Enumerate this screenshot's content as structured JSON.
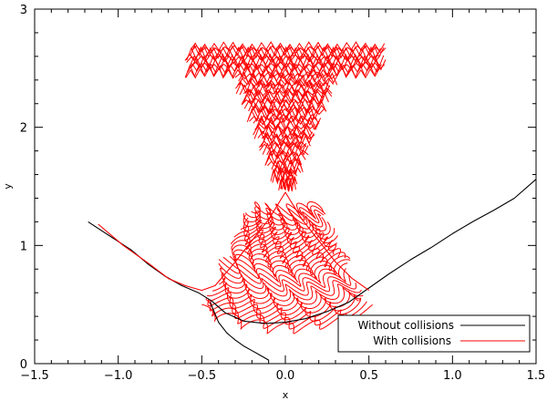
{
  "chart_data": {
    "type": "line",
    "title": "",
    "xlabel": "x",
    "ylabel": "y",
    "xlim": [
      -1.5,
      1.5
    ],
    "ylim": [
      0,
      3
    ],
    "xticks": [
      -1.5,
      -1.0,
      -0.5,
      0.0,
      0.5,
      1.0,
      1.5
    ],
    "xtick_labels": [
      "−1.5",
      "−1.0",
      "−0.5",
      "0.0",
      "0.5",
      "1.0",
      "1.5"
    ],
    "yticks": [
      0,
      1,
      2,
      3
    ],
    "ytick_labels": [
      "0",
      "1",
      "2",
      "3"
    ],
    "grid": false,
    "legend_position": "bottom-right",
    "series": [
      {
        "name": "Without collisions",
        "color": "#000000",
        "x": [
          -1.18,
          -1.05,
          -0.92,
          -0.82,
          -0.72,
          -0.62,
          -0.52,
          -0.44,
          -0.36,
          -0.25,
          -0.12,
          0.0,
          0.12,
          0.25,
          0.38,
          0.5,
          0.62,
          0.75,
          0.87,
          1.0,
          1.12,
          1.25,
          1.37,
          1.5
        ],
        "y": [
          1.2,
          1.08,
          0.96,
          0.84,
          0.74,
          0.66,
          0.6,
          0.53,
          0.43,
          0.36,
          0.34,
          0.35,
          0.38,
          0.44,
          0.52,
          0.64,
          0.76,
          0.88,
          0.98,
          1.1,
          1.2,
          1.3,
          1.4,
          1.56
        ]
      },
      {
        "name": "With collisions",
        "color": "#ff0000",
        "x": [
          -1.12,
          -0.97,
          -0.82,
          -0.7,
          -0.6,
          -0.5,
          -0.42,
          -0.3,
          -0.2,
          -0.1,
          0.0,
          0.1,
          0.2,
          0.3,
          0.4,
          0.5
        ],
        "y": [
          1.18,
          1.0,
          0.85,
          0.72,
          0.66,
          0.62,
          0.66,
          0.86,
          1.04,
          1.22,
          1.45,
          1.22,
          1.04,
          0.86,
          0.72,
          0.62
        ]
      },
      {
        "name": "",
        "color": "#000000",
        "x": [
          -0.45,
          -0.4,
          -0.35,
          -0.3,
          -0.25,
          -0.2,
          -0.15,
          -0.1
        ],
        "y": [
          0.52,
          0.35,
          0.26,
          0.2,
          0.15,
          0.11,
          0.07,
          0.03
        ]
      }
    ]
  }
}
